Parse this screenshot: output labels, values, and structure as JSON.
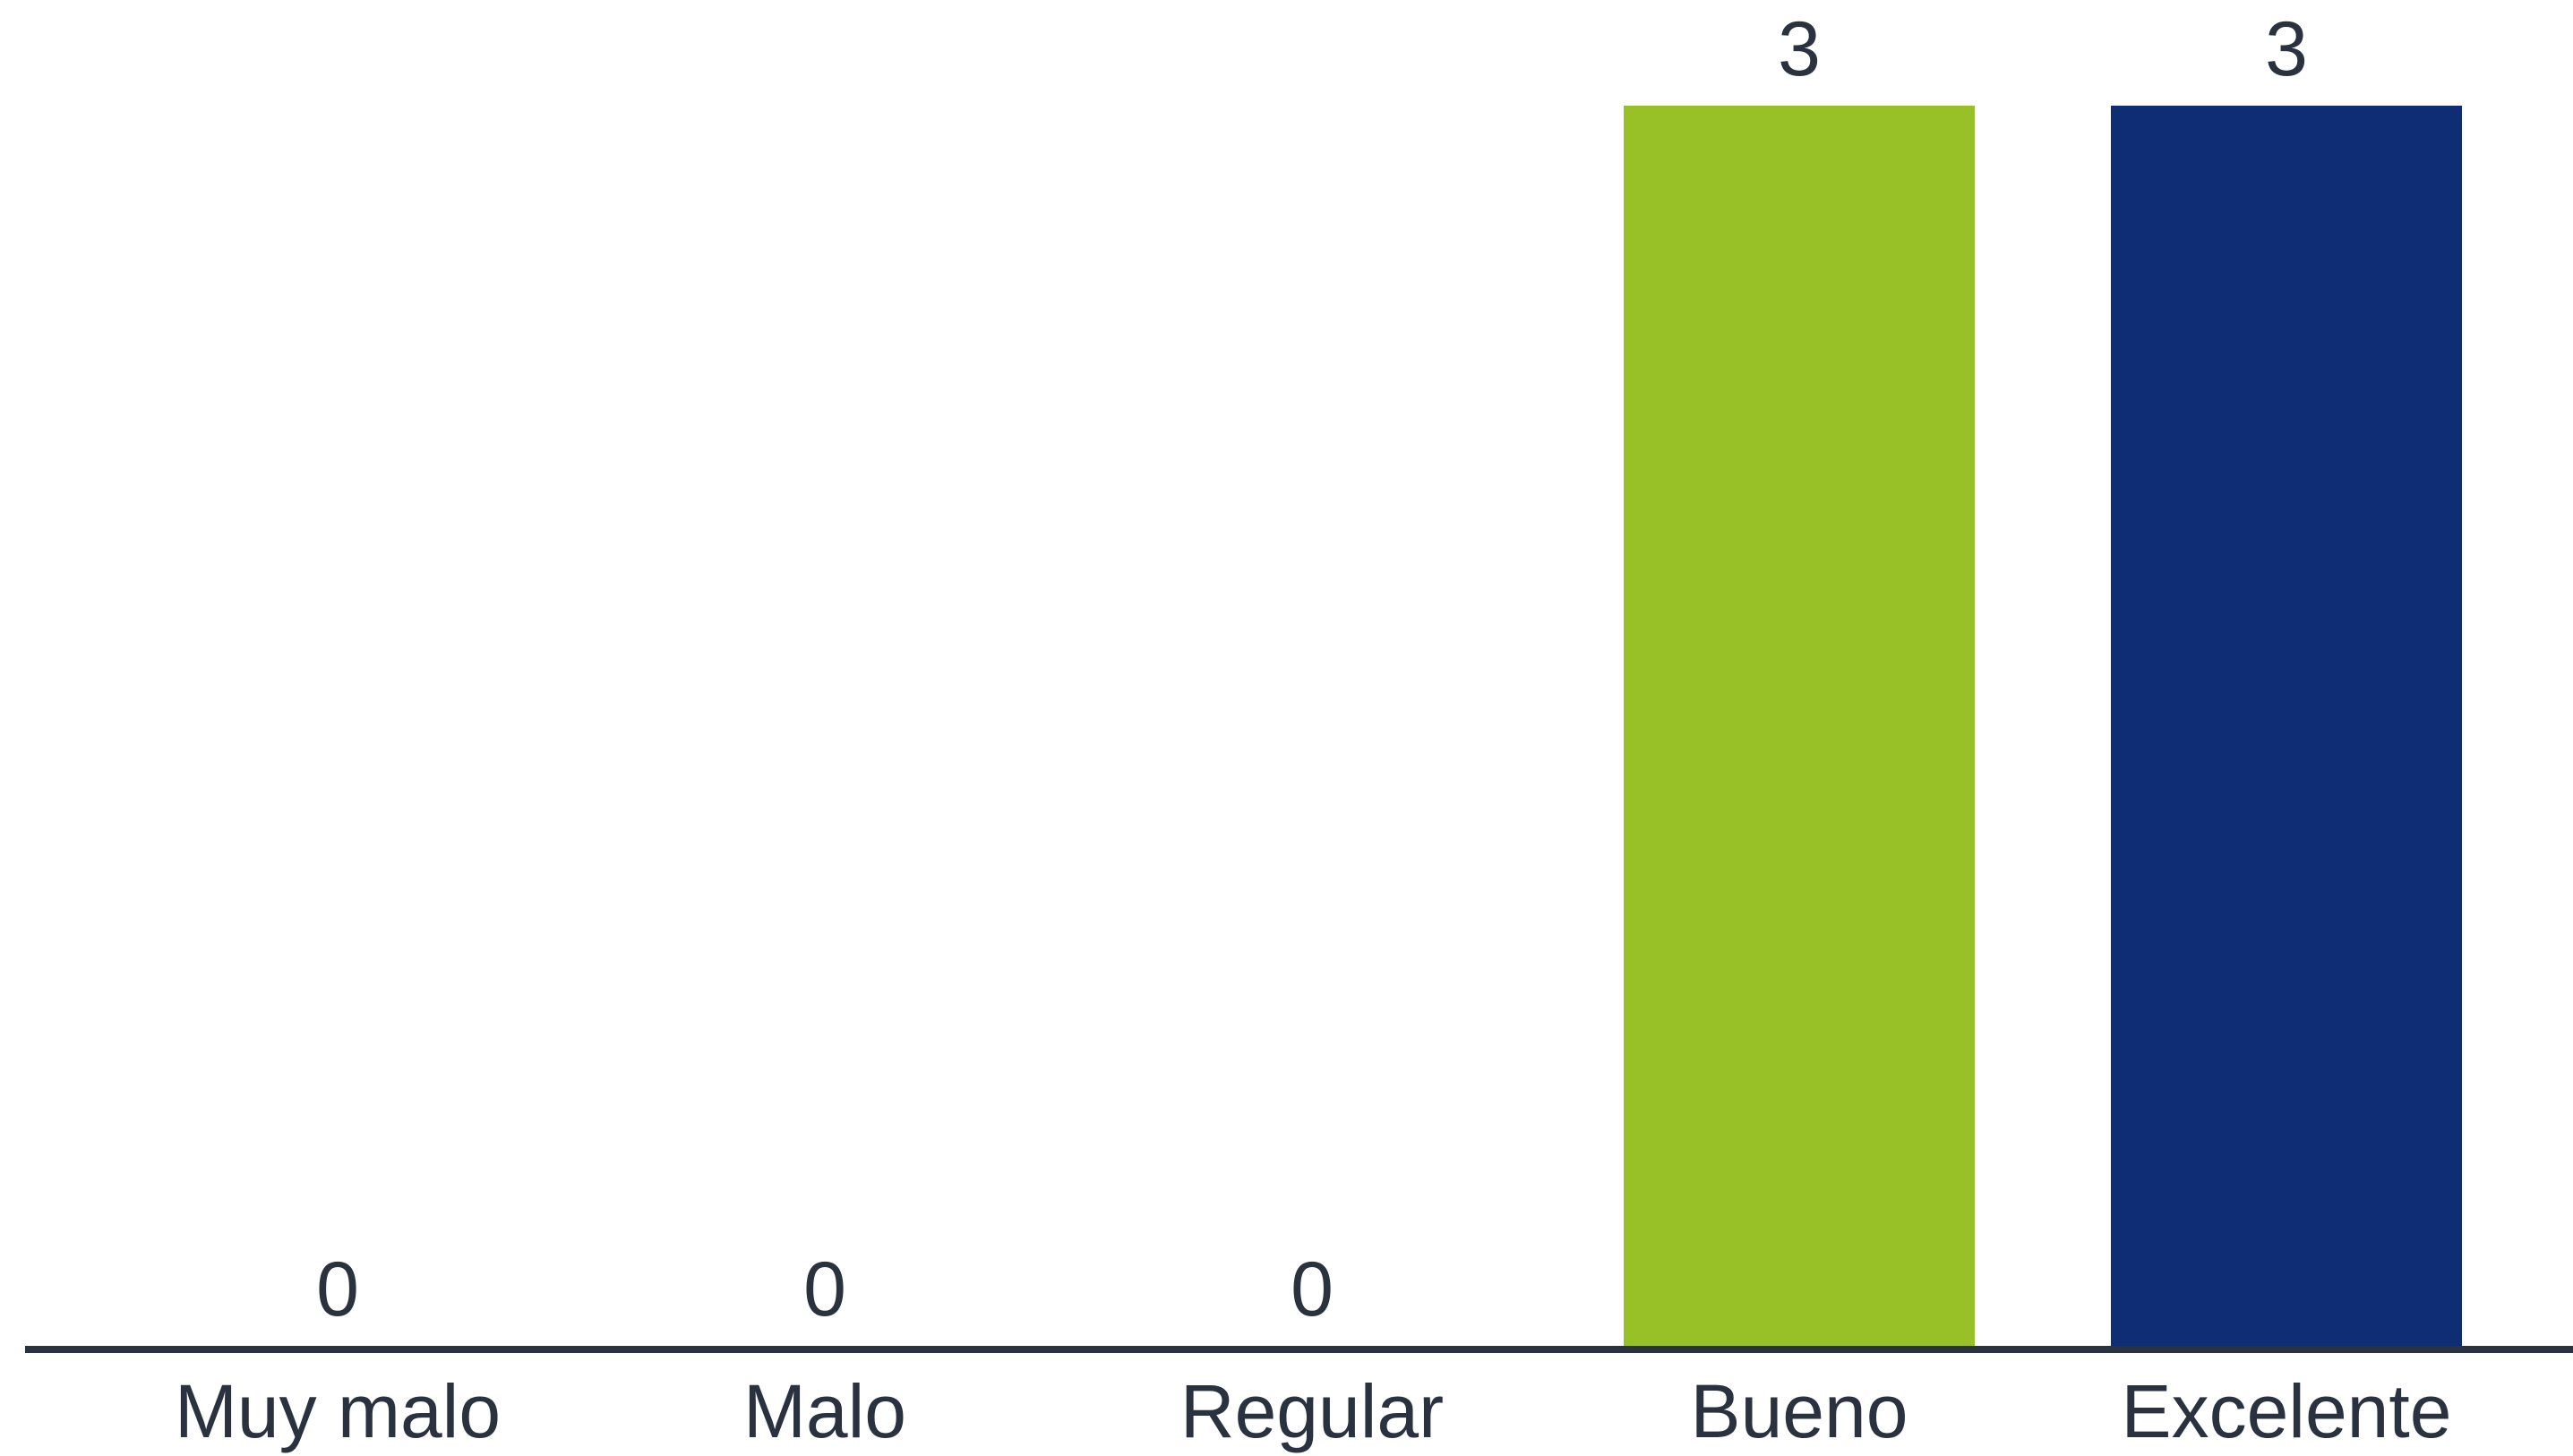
{
  "chart_data": {
    "type": "bar",
    "categories": [
      "Muy malo",
      "Malo",
      "Regular",
      "Bueno",
      "Excelente"
    ],
    "values": [
      0,
      0,
      0,
      3,
      3
    ],
    "colors": [
      "#97c126",
      "#97c126",
      "#97c126",
      "#97c126",
      "#0f2d75"
    ],
    "data_labels": [
      "0",
      "0",
      "0",
      "3",
      "3"
    ],
    "ylim": [
      0,
      3
    ],
    "grid": false,
    "legend": "none",
    "axis_color": "#2a3240",
    "label_color": "#2a3240"
  }
}
